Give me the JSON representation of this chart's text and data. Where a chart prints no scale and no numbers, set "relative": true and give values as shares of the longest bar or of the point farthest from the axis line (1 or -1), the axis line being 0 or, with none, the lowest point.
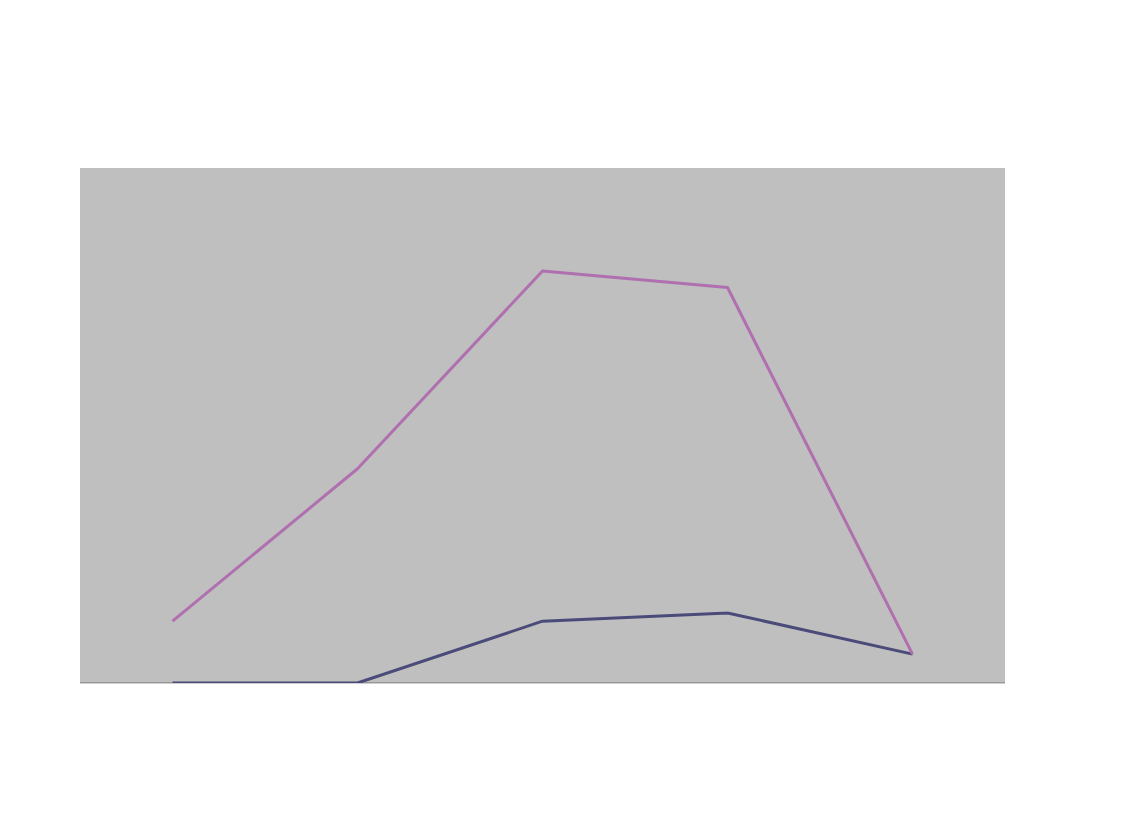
{
  "chart_data": {
    "type": "line",
    "relative": true,
    "categories": [
      null,
      null,
      null,
      null,
      null
    ],
    "series": [
      {
        "color": "#4b4b7a",
        "values": [
          0,
          0,
          0.15,
          0.17,
          0.07
        ]
      },
      {
        "color": "#b070b0",
        "values": [
          0.15,
          0.52,
          1,
          0.96,
          0.07
        ]
      }
    ]
  }
}
